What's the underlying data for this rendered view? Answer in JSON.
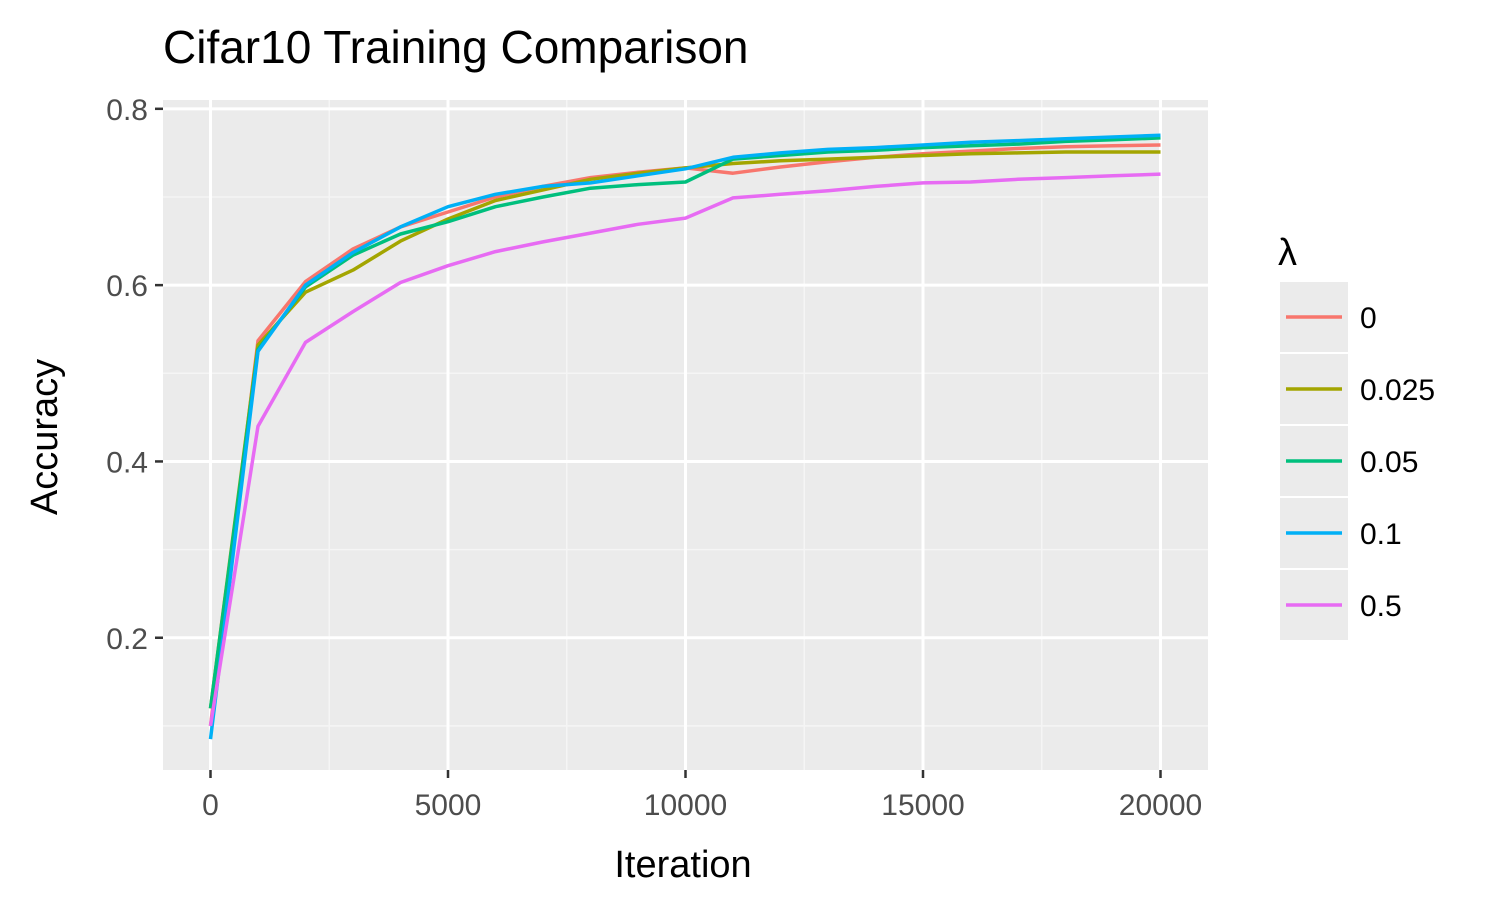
{
  "chart_data": {
    "type": "line",
    "title": "Cifar10 Training Comparison",
    "xlabel": "Iteration",
    "ylabel": "Accuracy",
    "xlim": [
      -1000,
      21000
    ],
    "ylim": [
      0.05,
      0.81
    ],
    "x_ticks": [
      0,
      5000,
      10000,
      15000,
      20000
    ],
    "y_ticks": [
      0.2,
      0.4,
      0.6,
      0.8
    ],
    "x_tick_labels": [
      "0",
      "5000",
      "10000",
      "15000",
      "20000"
    ],
    "y_tick_labels": [
      "0.2",
      "0.4",
      "0.6",
      "0.8"
    ],
    "grid": true,
    "legend_title": "λ",
    "legend_position": "right",
    "x": [
      0,
      1000,
      2000,
      3000,
      4000,
      5000,
      6000,
      7000,
      8000,
      9000,
      10000,
      11000,
      12000,
      13000,
      14000,
      15000,
      16000,
      17000,
      18000,
      19000,
      20000
    ],
    "series": [
      {
        "name": "0",
        "color": "#F8766D",
        "values": [
          0.1,
          0.537,
          0.604,
          0.641,
          0.666,
          0.683,
          0.7,
          0.712,
          0.722,
          0.728,
          0.733,
          0.727,
          0.734,
          0.74,
          0.745,
          0.749,
          0.752,
          0.755,
          0.757,
          0.758,
          0.759
        ]
      },
      {
        "name": "0.025",
        "color": "#A3A500",
        "values": [
          0.12,
          0.532,
          0.592,
          0.617,
          0.65,
          0.675,
          0.696,
          0.708,
          0.72,
          0.727,
          0.733,
          0.738,
          0.741,
          0.743,
          0.745,
          0.747,
          0.749,
          0.75,
          0.751,
          0.751,
          0.751
        ]
      },
      {
        "name": "0.05",
        "color": "#00BF7D",
        "values": [
          0.12,
          0.527,
          0.598,
          0.634,
          0.658,
          0.672,
          0.689,
          0.7,
          0.71,
          0.714,
          0.717,
          0.743,
          0.747,
          0.751,
          0.753,
          0.756,
          0.758,
          0.76,
          0.763,
          0.765,
          0.767
        ]
      },
      {
        "name": "0.1",
        "color": "#00B0F6",
        "values": [
          0.085,
          0.525,
          0.6,
          0.637,
          0.666,
          0.689,
          0.703,
          0.712,
          0.716,
          0.724,
          0.732,
          0.745,
          0.75,
          0.754,
          0.756,
          0.759,
          0.762,
          0.764,
          0.766,
          0.768,
          0.77
        ]
      },
      {
        "name": "0.5",
        "color": "#E76BF3",
        "values": [
          0.1,
          0.44,
          0.535,
          0.57,
          0.603,
          0.622,
          0.638,
          0.649,
          0.659,
          0.669,
          0.676,
          0.699,
          0.703,
          0.707,
          0.712,
          0.716,
          0.717,
          0.72,
          0.722,
          0.724,
          0.726
        ]
      }
    ]
  }
}
